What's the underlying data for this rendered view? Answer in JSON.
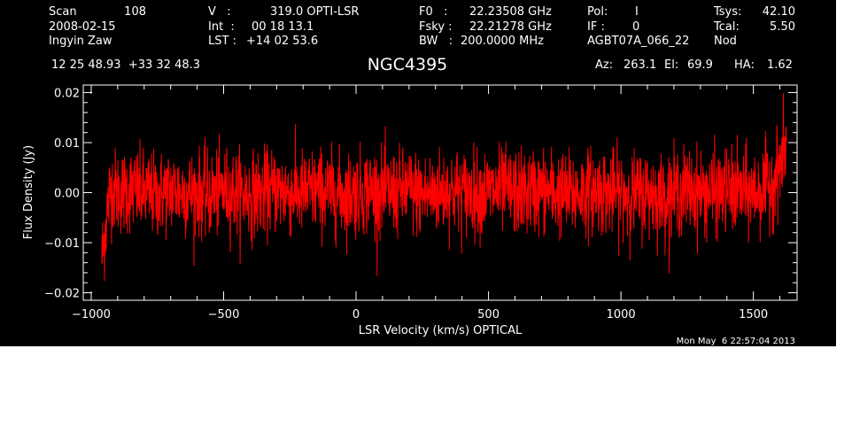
{
  "header": {
    "scan_label": "Scan",
    "scan_value": "108",
    "date": "2008-02-15",
    "observer": "Ingyin Zaw",
    "v_label": "V   :",
    "v_value": "319.0 OPTI-LSR",
    "int_label": "Int  :",
    "int_value": "00 18 13.1",
    "lst_label": "LST :",
    "lst_value": "+14 02 53.6",
    "f0_label": "F0   :",
    "f0_value": "22.23508 GHz",
    "fsky_label": "Fsky :",
    "fsky_value": "22.21278 GHz",
    "bw_label": "BW   :",
    "bw_value": "200.0000 MHz",
    "pol_label": "Pol:",
    "pol_value": "I",
    "if_label": "IF :",
    "if_value": "0",
    "project": "AGBT07A_066_22",
    "tsys_label": "Tsys:",
    "tsys_value": "42.10",
    "tcal_label": "Tcal:",
    "tcal_value": "5.50",
    "mode": "Nod",
    "coordinates": "12 25 48.93  +33 32 48.3",
    "source": "NGC4395",
    "az_label": "Az:",
    "az_value": "263.1",
    "el_label": "El:",
    "el_value": "69.9",
    "ha_label": "HA:",
    "ha_value": "1.62"
  },
  "timestamp": "Mon May  6 22:57:04 2013",
  "chart_data": {
    "type": "line",
    "title": "NGC4395",
    "xlabel": "LSR Velocity (km/s) OPTICAL",
    "ylabel": "Flux Density (Jy)",
    "xlim": [
      -1030,
      1665
    ],
    "ylim": [
      -0.0215,
      0.0215
    ],
    "xticks": [
      -1000,
      -500,
      0,
      500,
      1000,
      1500
    ],
    "xtick_labels": [
      "−1000",
      "−500",
      "0",
      "500",
      "1000",
      "1500"
    ],
    "yticks": [
      -0.02,
      -0.01,
      0.0,
      0.01,
      0.02
    ],
    "ytick_labels": [
      "−0.02",
      "−0.01",
      "0.00",
      "0.01",
      "0.02"
    ],
    "grid": false,
    "series": [
      {
        "color": "#ff0000",
        "x": [
          -960,
          -950,
          -940,
          -930,
          -920,
          -900,
          -850,
          -800,
          -750,
          -700,
          -650,
          -600,
          -550,
          -500,
          -450,
          -400,
          -350,
          -300,
          -250,
          -200,
          -150,
          -100,
          -50,
          0,
          50,
          100,
          150,
          200,
          250,
          300,
          350,
          400,
          450,
          500,
          550,
          600,
          650,
          700,
          750,
          800,
          850,
          900,
          950,
          1000,
          1050,
          1100,
          1150,
          1200,
          1250,
          1300,
          1350,
          1400,
          1450,
          1500,
          1550,
          1570,
          1590,
          1610,
          1625
        ],
        "y": [
          -0.013,
          -0.009,
          -0.004,
          0.0,
          0.001,
          0.0,
          0.0005,
          0.0,
          -0.0005,
          0.0005,
          0.0,
          0.0,
          -0.0005,
          0.0005,
          0.0,
          -0.0005,
          0.0,
          0.0005,
          0.0,
          0.0,
          0.0005,
          0.0,
          -0.0005,
          0.0,
          0.0005,
          0.0,
          0.0,
          0.0005,
          -0.0005,
          0.0,
          0.0005,
          0.0,
          0.0,
          0.0,
          0.0005,
          0.0,
          0.0,
          0.0005,
          0.0,
          -0.0005,
          0.0,
          0.0005,
          0.0,
          0.0,
          -0.0005,
          0.0,
          -0.001,
          0.0,
          0.0005,
          0.0,
          0.0,
          0.0005,
          0.0,
          0.0,
          0.001,
          0.002,
          0.004,
          0.007,
          0.01
        ],
        "noise_rms": 0.0042
      }
    ]
  }
}
